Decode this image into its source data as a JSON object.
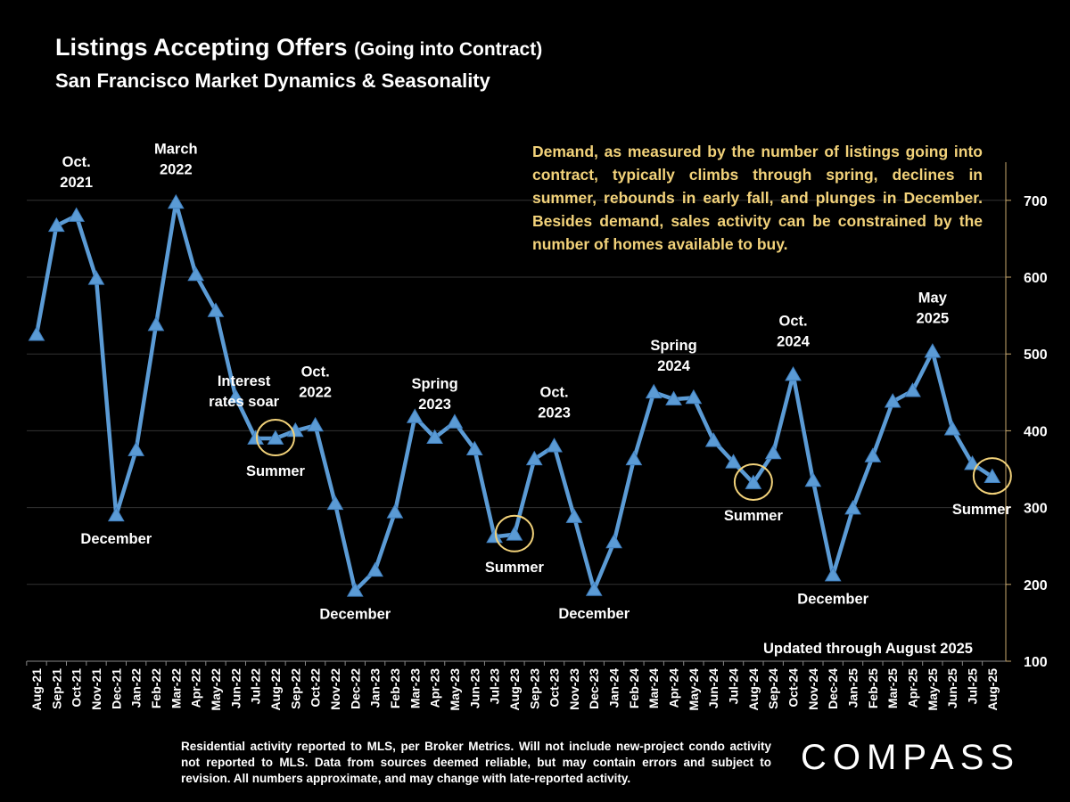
{
  "header": {
    "title": "Listings Accepting Offers",
    "title_suffix": "(Going into Contract)",
    "subtitle": "San Francisco Market Dynamics & Seasonality"
  },
  "note": "Demand, as measured by the number of listings going into contract, typically climbs through spring, declines in summer, rebounds in early fall, and plunges in December.  Besides demand, sales activity can be constrained by the number of homes available to  buy.",
  "updated": "Updated through August 2025",
  "footnote": "Residential activity reported to MLS, per Broker Metrics. Will not include new-project condo activity not reported to MLS. Data from sources deemed reliable, but may contain errors and subject to revision. All numbers approximate, and may change with late-reported activity.",
  "logo": "COMPASS",
  "colors": {
    "background": "#000000",
    "line": "#5b9bd5",
    "grid": "#333333",
    "note_text": "#f2d27a",
    "highlight_circle": "#f2d27a",
    "axis": "#c9a96e"
  },
  "chart_data": {
    "type": "line",
    "categories": [
      "Aug-21",
      "Sep-21",
      "Oct-21",
      "Nov-21",
      "Dec-21",
      "Jan-22",
      "Feb-22",
      "Mar-22",
      "Apr-22",
      "May-22",
      "Jun-22",
      "Jul-22",
      "Aug-22",
      "Sep-22",
      "Oct-22",
      "Nov-22",
      "Dec-22",
      "Jan-23",
      "Feb-23",
      "Mar-23",
      "Apr-23",
      "May-23",
      "Jun-23",
      "Jul-23",
      "Aug-23",
      "Sep-23",
      "Oct-23",
      "Nov-23",
      "Dec-23",
      "Jan-24",
      "Feb-24",
      "Mar-24",
      "Apr-24",
      "May-24",
      "Jun-24",
      "Jul-24",
      "Aug-24",
      "Sep-24",
      "Oct-24",
      "Nov-24",
      "Dec-24",
      "Jan-25",
      "Feb-25",
      "Mar-25",
      "Apr-25",
      "May-25",
      "Jun-25",
      "Jul-25",
      "Aug-25"
    ],
    "values": [
      525,
      667,
      680,
      598,
      290,
      375,
      538,
      697,
      603,
      556,
      444,
      390,
      390,
      400,
      407,
      305,
      192,
      218,
      294,
      418,
      391,
      411,
      376,
      262,
      265,
      363,
      380,
      288,
      193,
      255,
      363,
      450,
      441,
      443,
      387,
      359,
      332,
      371,
      473,
      335,
      212,
      299,
      367,
      438,
      452,
      503,
      402,
      357,
      340
    ],
    "ylim": [
      100,
      750
    ],
    "yticks": [
      100,
      200,
      300,
      400,
      500,
      600,
      700
    ],
    "y_axis_side": "right",
    "grid": true,
    "annotations": [
      {
        "idx": 2,
        "text": [
          "Oct.",
          "2021"
        ],
        "pos": "above"
      },
      {
        "idx": 7,
        "text": [
          "March",
          "2022"
        ],
        "pos": "above"
      },
      {
        "idx": 11,
        "text": [
          "Interest",
          "rates soar"
        ],
        "pos": "custom",
        "dxv": 505
      },
      {
        "idx": 4,
        "text": [
          "December"
        ],
        "pos": "below"
      },
      {
        "idx": 12,
        "text": [
          "Summer"
        ],
        "pos": "below-circle"
      },
      {
        "idx": 14,
        "text": [
          "Oct.",
          "2022"
        ],
        "pos": "above"
      },
      {
        "idx": 16,
        "text": [
          "December"
        ],
        "pos": "below"
      },
      {
        "idx": 20,
        "text": [
          "Spring",
          "2023"
        ],
        "pos": "above"
      },
      {
        "idx": 24,
        "text": [
          "Summer"
        ],
        "pos": "below-circle"
      },
      {
        "idx": 26,
        "text": [
          "Oct.",
          "2023"
        ],
        "pos": "above"
      },
      {
        "idx": 28,
        "text": [
          "December"
        ],
        "pos": "below"
      },
      {
        "idx": 32,
        "text": [
          "Spring",
          "2024"
        ],
        "pos": "above"
      },
      {
        "idx": 36,
        "text": [
          "Summer"
        ],
        "pos": "below-circle"
      },
      {
        "idx": 38,
        "text": [
          "Oct.",
          "2024"
        ],
        "pos": "above"
      },
      {
        "idx": 40,
        "text": [
          "December"
        ],
        "pos": "below"
      },
      {
        "idx": 45,
        "text": [
          "May",
          "2025"
        ],
        "pos": "above"
      },
      {
        "idx": 48,
        "text": [
          "Summer"
        ],
        "pos": "below-circle"
      }
    ],
    "highlighted": [
      12,
      24,
      36,
      48
    ]
  }
}
